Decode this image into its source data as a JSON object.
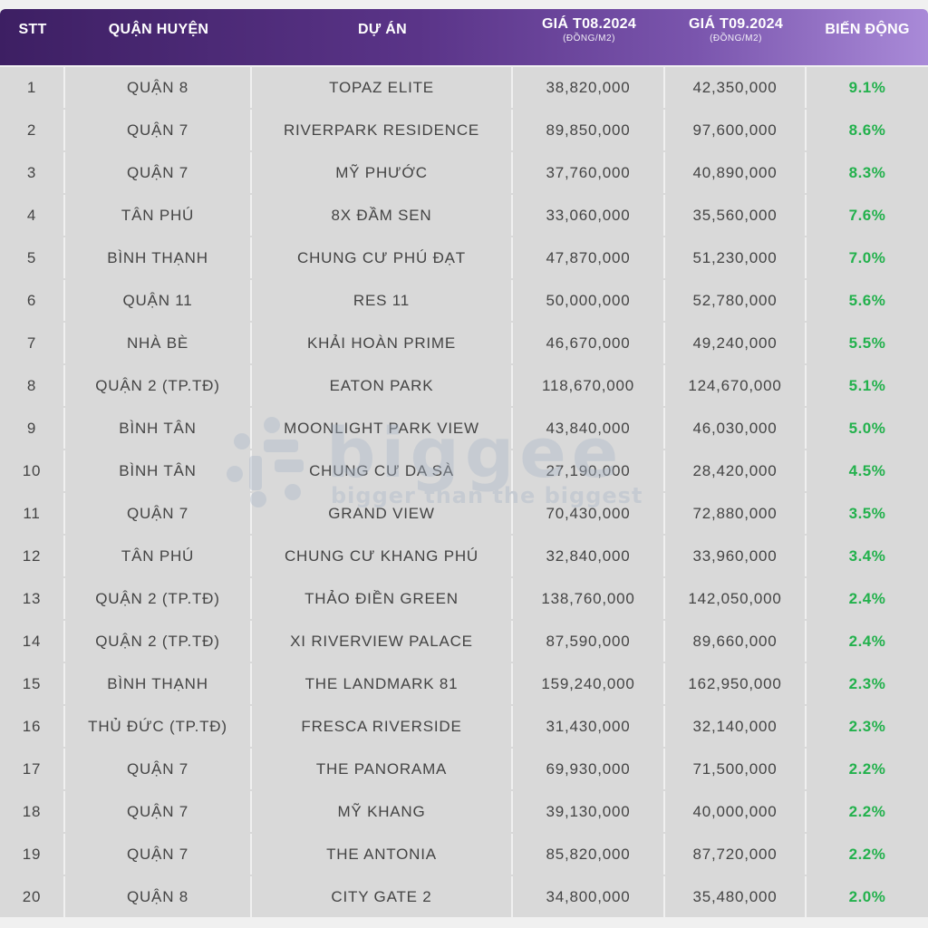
{
  "header": {
    "stt": "STT",
    "district": "QUẬN HUYỆN",
    "project": "DỰ ÁN",
    "price_aug": "GIÁ T08.2024",
    "price_aug_unit": "(ĐỒNG/M2)",
    "price_sep": "GIÁ T09.2024",
    "price_sep_unit": "(ĐỒNG/M2)",
    "change": "BIẾN ĐỘNG"
  },
  "rows": [
    {
      "stt": "1",
      "district": "QUẬN 8",
      "project": "TOPAZ ELITE",
      "price_aug": "38,820,000",
      "price_sep": "42,350,000",
      "change": "9.1%"
    },
    {
      "stt": "2",
      "district": "QUẬN 7",
      "project": "RIVERPARK RESIDENCE",
      "price_aug": "89,850,000",
      "price_sep": "97,600,000",
      "change": "8.6%"
    },
    {
      "stt": "3",
      "district": "QUẬN 7",
      "project": "MỸ PHƯỚC",
      "price_aug": "37,760,000",
      "price_sep": "40,890,000",
      "change": "8.3%"
    },
    {
      "stt": "4",
      "district": "TÂN PHÚ",
      "project": "8X ĐẦM SEN",
      "price_aug": "33,060,000",
      "price_sep": "35,560,000",
      "change": "7.6%"
    },
    {
      "stt": "5",
      "district": "BÌNH THẠNH",
      "project": "CHUNG CƯ PHÚ ĐẠT",
      "price_aug": "47,870,000",
      "price_sep": "51,230,000",
      "change": "7.0%"
    },
    {
      "stt": "6",
      "district": "QUẬN 11",
      "project": "RES 11",
      "price_aug": "50,000,000",
      "price_sep": "52,780,000",
      "change": "5.6%"
    },
    {
      "stt": "7",
      "district": "NHÀ BÈ",
      "project": "KHẢI HOÀN PRIME",
      "price_aug": "46,670,000",
      "price_sep": "49,240,000",
      "change": "5.5%"
    },
    {
      "stt": "8",
      "district": "QUẬN 2 (TP.TĐ)",
      "project": "EATON PARK",
      "price_aug": "118,670,000",
      "price_sep": "124,670,000",
      "change": "5.1%"
    },
    {
      "stt": "9",
      "district": "BÌNH TÂN",
      "project": "MOONLIGHT PARK VIEW",
      "price_aug": "43,840,000",
      "price_sep": "46,030,000",
      "change": "5.0%"
    },
    {
      "stt": "10",
      "district": "BÌNH TÂN",
      "project": "CHUNG CƯ DA SÀ",
      "price_aug": "27,190,000",
      "price_sep": "28,420,000",
      "change": "4.5%"
    },
    {
      "stt": "11",
      "district": "QUẬN 7",
      "project": "GRAND VIEW",
      "price_aug": "70,430,000",
      "price_sep": "72,880,000",
      "change": "3.5%"
    },
    {
      "stt": "12",
      "district": "TÂN PHÚ",
      "project": "CHUNG CƯ KHANG PHÚ",
      "price_aug": "32,840,000",
      "price_sep": "33,960,000",
      "change": "3.4%"
    },
    {
      "stt": "13",
      "district": "QUẬN 2 (TP.TĐ)",
      "project": "THẢO ĐIỀN GREEN",
      "price_aug": "138,760,000",
      "price_sep": "142,050,000",
      "change": "2.4%"
    },
    {
      "stt": "14",
      "district": "QUẬN 2 (TP.TĐ)",
      "project": "XI RIVERVIEW PALACE",
      "price_aug": "87,590,000",
      "price_sep": "89,660,000",
      "change": "2.4%"
    },
    {
      "stt": "15",
      "district": "BÌNH THẠNH",
      "project": "THE LANDMARK 81",
      "price_aug": "159,240,000",
      "price_sep": "162,950,000",
      "change": "2.3%"
    },
    {
      "stt": "16",
      "district": "THỦ ĐỨC (TP.TĐ)",
      "project": "FRESCA RIVERSIDE",
      "price_aug": "31,430,000",
      "price_sep": "32,140,000",
      "change": "2.3%"
    },
    {
      "stt": "17",
      "district": "QUẬN 7",
      "project": "THE PANORAMA",
      "price_aug": "69,930,000",
      "price_sep": "71,500,000",
      "change": "2.2%"
    },
    {
      "stt": "18",
      "district": "QUẬN 7",
      "project": "MỸ KHANG",
      "price_aug": "39,130,000",
      "price_sep": "40,000,000",
      "change": "2.2%"
    },
    {
      "stt": "19",
      "district": "QUẬN 7",
      "project": "THE ANTONIA",
      "price_aug": "85,820,000",
      "price_sep": "87,720,000",
      "change": "2.2%"
    },
    {
      "stt": "20",
      "district": "QUẬN 8",
      "project": "CITY GATE 2",
      "price_aug": "34,800,000",
      "price_sep": "35,480,000",
      "change": "2.0%"
    }
  ],
  "watermark": {
    "logo_text": "biggee",
    "tagline": "bigger than the biggest"
  },
  "colors": {
    "header_start": "#3d1f63",
    "header_end": "#a98ad8",
    "change_green": "#22b14c",
    "row_bg": "#d9d9d9"
  }
}
